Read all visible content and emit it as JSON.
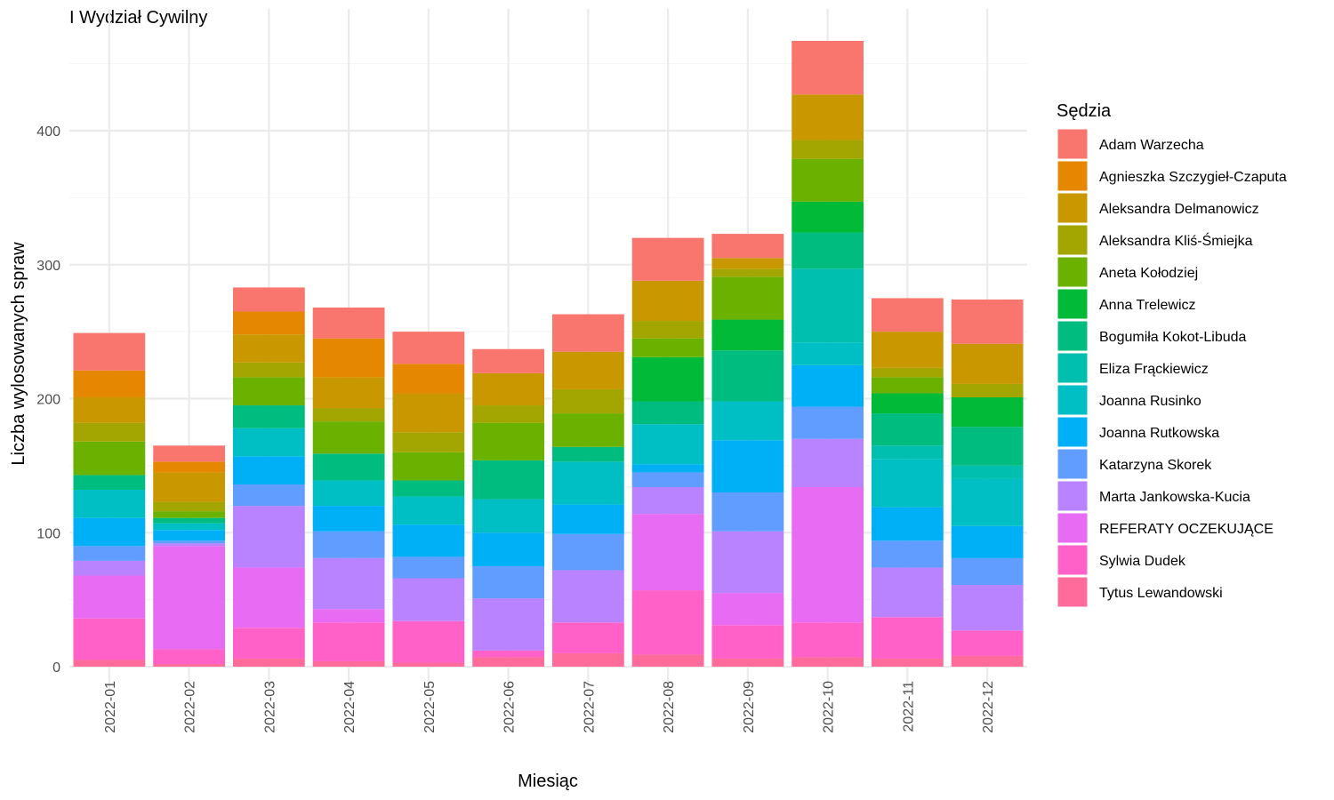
{
  "chart_data": {
    "type": "bar",
    "stacked": true,
    "title": "I Wydział Cywilny",
    "xlabel": "Miesiąc",
    "ylabel": "Liczba wylosowanych spraw",
    "legend_title": "Sędzia",
    "legend_position": "right",
    "grid": true,
    "ylim": [
      0,
      470
    ],
    "yticks": [
      0,
      100,
      200,
      300,
      400
    ],
    "categories": [
      "2022-01",
      "2022-02",
      "2022-03",
      "2022-04",
      "2022-05",
      "2022-06",
      "2022-07",
      "2022-08",
      "2022-09",
      "2022-10",
      "2022-11",
      "2022-12"
    ],
    "series": [
      {
        "name": "Tytus Lewandowski",
        "color": "#FF6C9C",
        "values": [
          5,
          2,
          6,
          4,
          3,
          7,
          10,
          9,
          6,
          7,
          6,
          8
        ]
      },
      {
        "name": "Sylwia Dudek",
        "color": "#FF61C9",
        "values": [
          31,
          11,
          23,
          29,
          31,
          5,
          23,
          48,
          25,
          26,
          31,
          19
        ]
      },
      {
        "name": "REFERATY OCZEKUJĄCE",
        "color": "#E76BF3",
        "values": [
          32,
          77,
          45,
          10,
          0,
          0,
          0,
          57,
          24,
          101,
          0,
          0
        ]
      },
      {
        "name": "Marta Jankowska-Kucia",
        "color": "#B983FF",
        "values": [
          11,
          2,
          46,
          38,
          32,
          39,
          39,
          20,
          46,
          36,
          37,
          34
        ]
      },
      {
        "name": "Katarzyna Skorek",
        "color": "#619CFF",
        "values": [
          11,
          2,
          16,
          20,
          16,
          24,
          27,
          11,
          29,
          24,
          20,
          20
        ]
      },
      {
        "name": "Joanna Rutkowska",
        "color": "#00B0F6",
        "values": [
          21,
          8,
          21,
          19,
          24,
          25,
          22,
          6,
          39,
          31,
          25,
          24
        ]
      },
      {
        "name": "Joanna Rusinko",
        "color": "#00BFC4",
        "values": [
          21,
          5,
          21,
          19,
          21,
          25,
          32,
          30,
          29,
          17,
          36,
          35
        ]
      },
      {
        "name": "Eliza Frąckiewicz",
        "color": "#00BFAF",
        "values": [
          0,
          0,
          0,
          0,
          0,
          0,
          0,
          0,
          0,
          55,
          10,
          10
        ]
      },
      {
        "name": "Bogumiła Kokot-Libuda",
        "color": "#00BC7F",
        "values": [
          11,
          4,
          17,
          20,
          12,
          29,
          11,
          17,
          38,
          27,
          24,
          29
        ]
      },
      {
        "name": "Anna Trelewicz",
        "color": "#00BA38",
        "values": [
          0,
          0,
          0,
          0,
          0,
          0,
          0,
          33,
          23,
          23,
          15,
          22
        ]
      },
      {
        "name": "Aneta Kołodziej",
        "color": "#6BB100",
        "values": [
          25,
          5,
          21,
          24,
          21,
          28,
          25,
          14,
          32,
          32,
          12,
          0
        ]
      },
      {
        "name": "Aleksandra Kliś-Śmiejka",
        "color": "#A3A500",
        "values": [
          14,
          7,
          11,
          10,
          15,
          13,
          18,
          13,
          6,
          14,
          7,
          10
        ]
      },
      {
        "name": "Aleksandra Delmanowicz",
        "color": "#C99800",
        "values": [
          19,
          22,
          21,
          23,
          29,
          24,
          28,
          30,
          8,
          34,
          27,
          30
        ]
      },
      {
        "name": "Agnieszka Szczygieł-Czaputa",
        "color": "#E58700",
        "values": [
          20,
          8,
          17,
          29,
          22,
          0,
          0,
          0,
          0,
          0,
          0,
          0
        ]
      },
      {
        "name": "Adam Warzecha",
        "color": "#F8766D",
        "values": [
          28,
          12,
          18,
          23,
          24,
          18,
          28,
          32,
          18,
          40,
          25,
          33
        ]
      }
    ],
    "legend_order": [
      "Adam Warzecha",
      "Agnieszka Szczygieł-Czaputa",
      "Aleksandra Delmanowicz",
      "Aleksandra Kliś-Śmiejka",
      "Aneta Kołodziej",
      "Anna Trelewicz",
      "Bogumiła Kokot-Libuda",
      "Eliza Frąckiewicz",
      "Joanna Rusinko",
      "Joanna Rutkowska",
      "Katarzyna Skorek",
      "Marta Jankowska-Kucia",
      "REFERATY OCZEKUJĄCE",
      "Sylwia Dudek",
      "Tytus Lewandowski"
    ]
  }
}
